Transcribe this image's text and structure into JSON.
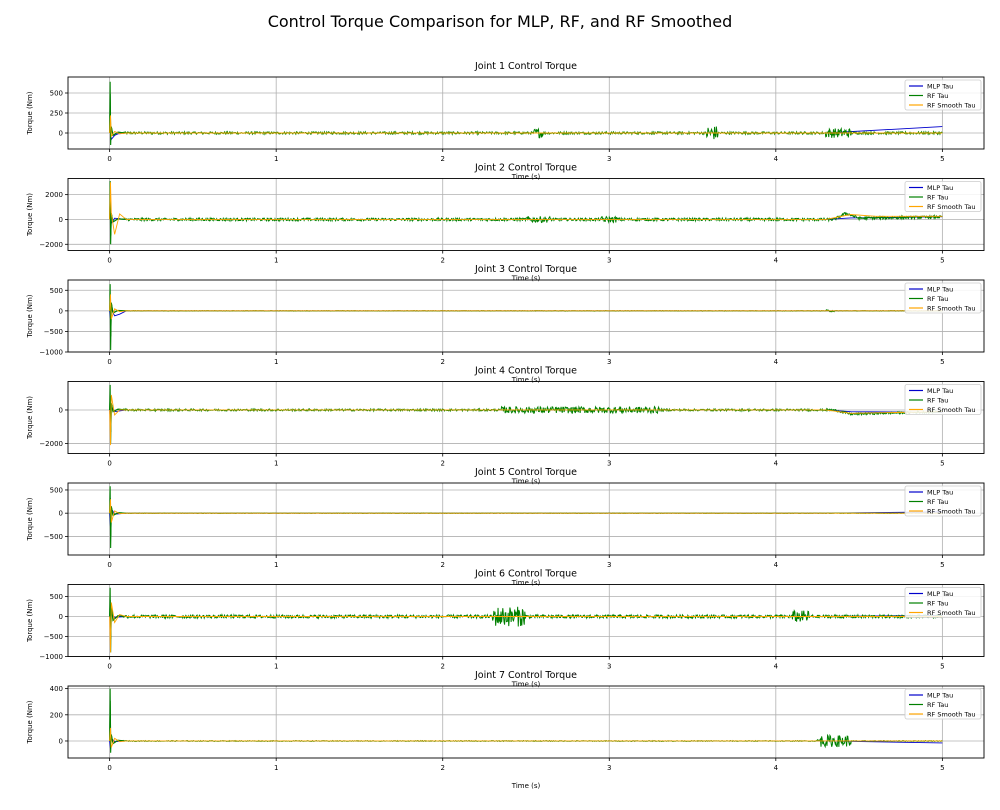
{
  "title": "Control Torque Comparison for MLP, RF, and RF Smoothed",
  "colors": {
    "mlp": "#0000cc",
    "rf": "#008000",
    "rf_smooth": "#ffa500",
    "grid": "#b0b0b0"
  },
  "chart_data": [
    {
      "type": "line",
      "title": "Joint 1 Control Torque",
      "xlabel": "Time (s)",
      "ylabel": "Torque (Nm)",
      "xlim": [
        -0.25,
        5.25
      ],
      "ylim": [
        -200,
        700
      ],
      "xticks": [
        0,
        1,
        2,
        3,
        4,
        5
      ],
      "yticks": [
        0,
        250,
        500
      ],
      "grid": true,
      "legend_position": "top-right",
      "legend": [
        "MLP Tau",
        "RF Tau",
        "RF Smooth Tau"
      ],
      "series": [
        {
          "name": "MLP Tau",
          "x": [
            0,
            0.005,
            0.01,
            0.03,
            0.05,
            0.1,
            4.3,
            5.0
          ],
          "y": [
            0,
            50,
            -80,
            -30,
            -10,
            0,
            0,
            80
          ]
        },
        {
          "name": "RF Tau",
          "x": [
            0,
            0.003,
            0.006,
            0.01,
            0.02,
            0.05,
            0.1,
            5.0
          ],
          "y": [
            0,
            640,
            -150,
            80,
            -30,
            10,
            0,
            0
          ],
          "noise": 15,
          "bursts": [
            [
              2.55,
              2.6,
              60
            ],
            [
              3.58,
              3.65,
              90
            ],
            [
              4.3,
              4.45,
              60
            ]
          ]
        },
        {
          "name": "RF Smooth Tau",
          "x": [
            0,
            0.005,
            0.01,
            0.03,
            0.06,
            0.1,
            5.0
          ],
          "y": [
            0,
            220,
            -40,
            20,
            -10,
            0,
            0
          ]
        }
      ]
    },
    {
      "type": "line",
      "title": "Joint 2 Control Torque",
      "xlabel": "Time (s)",
      "ylabel": "Torque (Nm)",
      "xlim": [
        -0.25,
        5.25
      ],
      "ylim": [
        -2500,
        3300
      ],
      "xticks": [
        0,
        1,
        2,
        3,
        4,
        5
      ],
      "yticks": [
        -2000,
        0,
        2000
      ],
      "grid": true,
      "legend_position": "top-right",
      "legend": [
        "MLP Tau",
        "RF Tau",
        "RF Smooth Tau"
      ],
      "series": [
        {
          "name": "MLP Tau",
          "x": [
            0,
            0.005,
            0.01,
            0.03,
            0.1,
            4.3,
            4.45,
            5.0
          ],
          "y": [
            0,
            1300,
            -300,
            100,
            0,
            0,
            120,
            220
          ]
        },
        {
          "name": "RF Tau",
          "x": [
            0,
            0.003,
            0.006,
            0.01,
            0.02,
            0.05,
            0.1,
            4.35,
            4.42,
            4.5,
            5.0
          ],
          "y": [
            0,
            3100,
            -2000,
            500,
            -200,
            50,
            0,
            0,
            500,
            100,
            200
          ],
          "noise": 110,
          "bursts": [
            [
              2.5,
              2.65,
              250
            ],
            [
              2.95,
              3.05,
              250
            ]
          ]
        },
        {
          "name": "RF Smooth Tau",
          "x": [
            0,
            0.005,
            0.01,
            0.03,
            0.06,
            0.1,
            4.3,
            4.45,
            4.6,
            5.0
          ],
          "y": [
            0,
            3000,
            500,
            -1200,
            450,
            0,
            0,
            400,
            250,
            250
          ]
        }
      ]
    },
    {
      "type": "line",
      "title": "Joint 3 Control Torque",
      "xlabel": "Time (s)",
      "ylabel": "Torque (Nm)",
      "xlim": [
        -0.25,
        5.25
      ],
      "ylim": [
        -1000,
        750
      ],
      "xticks": [
        0,
        1,
        2,
        3,
        4,
        5
      ],
      "yticks": [
        -1000,
        -500,
        0,
        500
      ],
      "grid": true,
      "legend_position": "top-right",
      "legend": [
        "MLP Tau",
        "RF Tau",
        "RF Smooth Tau"
      ],
      "series": [
        {
          "name": "MLP Tau",
          "x": [
            0,
            0.005,
            0.01,
            0.03,
            0.06,
            0.1,
            5.0
          ],
          "y": [
            0,
            -200,
            50,
            -120,
            -80,
            0,
            0
          ]
        },
        {
          "name": "RF Tau",
          "x": [
            0,
            0.003,
            0.006,
            0.01,
            0.02,
            0.05,
            0.1,
            5.0
          ],
          "y": [
            0,
            650,
            -950,
            200,
            -50,
            10,
            0,
            0
          ],
          "noise": 6,
          "bursts": [
            [
              4.3,
              4.35,
              25
            ]
          ]
        },
        {
          "name": "RF Smooth Tau",
          "x": [
            0,
            0.005,
            0.01,
            0.03,
            0.06,
            0.1,
            5.0
          ],
          "y": [
            0,
            400,
            -200,
            50,
            -20,
            0,
            0
          ]
        }
      ]
    },
    {
      "type": "line",
      "title": "Joint 4 Control Torque",
      "xlabel": "Time (s)",
      "ylabel": "Torque (Nm)",
      "xlim": [
        -0.25,
        5.25
      ],
      "ylim": [
        -2600,
        1700
      ],
      "xticks": [
        0,
        1,
        2,
        3,
        4,
        5
      ],
      "yticks": [
        -2000,
        0
      ],
      "grid": true,
      "legend_position": "top-right",
      "legend": [
        "MLP Tau",
        "RF Tau",
        "RF Smooth Tau"
      ],
      "series": [
        {
          "name": "MLP Tau",
          "x": [
            0,
            0.005,
            0.01,
            0.03,
            0.1,
            4.3,
            4.45,
            5.0
          ],
          "y": [
            0,
            -800,
            200,
            -100,
            0,
            0,
            -100,
            -150
          ]
        },
        {
          "name": "RF Tau",
          "x": [
            0,
            0.003,
            0.006,
            0.01,
            0.02,
            0.05,
            0.1,
            4.35,
            4.45,
            5.0
          ],
          "y": [
            0,
            1500,
            -2000,
            400,
            -100,
            50,
            0,
            0,
            -250,
            -100
          ],
          "noise": 60,
          "bursts": [
            [
              2.35,
              3.3,
              200
            ]
          ]
        },
        {
          "name": "RF Smooth Tau",
          "x": [
            0,
            0.005,
            0.01,
            0.03,
            0.06,
            0.1,
            4.3,
            4.45,
            5.0
          ],
          "y": [
            0,
            -2100,
            900,
            -300,
            0,
            0,
            0,
            -200,
            -100
          ]
        }
      ]
    },
    {
      "type": "line",
      "title": "Joint 5 Control Torque",
      "xlabel": "Time (s)",
      "ylabel": "Torque (Nm)",
      "xlim": [
        -0.25,
        5.25
      ],
      "ylim": [
        -900,
        650
      ],
      "xticks": [
        0,
        1,
        2,
        3,
        4,
        5
      ],
      "yticks": [
        -500,
        0,
        500
      ],
      "grid": true,
      "legend_position": "top-right",
      "legend": [
        "MLP Tau",
        "RF Tau",
        "RF Smooth Tau"
      ],
      "series": [
        {
          "name": "MLP Tau",
          "x": [
            0,
            0.005,
            0.01,
            0.03,
            0.1,
            4.3,
            5.0
          ],
          "y": [
            0,
            -300,
            100,
            -20,
            0,
            0,
            30
          ]
        },
        {
          "name": "RF Tau",
          "x": [
            0,
            0.003,
            0.006,
            0.01,
            0.02,
            0.05,
            0.1,
            5.0
          ],
          "y": [
            0,
            580,
            -750,
            150,
            -50,
            10,
            0,
            0
          ],
          "noise": 5
        },
        {
          "name": "RF Smooth Tau",
          "x": [
            0,
            0.005,
            0.01,
            0.03,
            0.06,
            0.1,
            5.0
          ],
          "y": [
            0,
            300,
            -200,
            50,
            -10,
            0,
            0
          ]
        }
      ]
    },
    {
      "type": "line",
      "title": "Joint 6 Control Torque",
      "xlabel": "Time (s)",
      "ylabel": "Torque (Nm)",
      "xlim": [
        -0.25,
        5.25
      ],
      "ylim": [
        -1000,
        800
      ],
      "xticks": [
        0,
        1,
        2,
        3,
        4,
        5
      ],
      "yticks": [
        -1000,
        -500,
        0,
        500
      ],
      "grid": true,
      "legend_position": "top-right",
      "legend": [
        "MLP Tau",
        "RF Tau",
        "RF Smooth Tau"
      ],
      "series": [
        {
          "name": "MLP Tau",
          "x": [
            0,
            0.005,
            0.01,
            0.03,
            0.1,
            4.3,
            5.0
          ],
          "y": [
            0,
            -100,
            50,
            -20,
            0,
            0,
            30
          ]
        },
        {
          "name": "RF Tau",
          "x": [
            0,
            0.003,
            0.006,
            0.01,
            0.02,
            0.05,
            0.1,
            5.0
          ],
          "y": [
            0,
            720,
            -900,
            300,
            -100,
            20,
            0,
            0
          ],
          "noise": 40,
          "bursts": [
            [
              2.3,
              2.5,
              250
            ],
            [
              4.1,
              4.2,
              150
            ]
          ]
        },
        {
          "name": "RF Smooth Tau",
          "x": [
            0,
            0.005,
            0.01,
            0.03,
            0.06,
            0.1,
            5.0
          ],
          "y": [
            0,
            -900,
            350,
            -150,
            50,
            0,
            0
          ]
        }
      ]
    },
    {
      "type": "line",
      "title": "Joint 7 Control Torque",
      "xlabel": "Time (s)",
      "ylabel": "Torque (Nm)",
      "xlim": [
        -0.25,
        5.25
      ],
      "ylim": [
        -130,
        420
      ],
      "xticks": [
        0,
        1,
        2,
        3,
        4,
        5
      ],
      "yticks": [
        0,
        200,
        400
      ],
      "grid": true,
      "legend_position": "top-right",
      "legend": [
        "MLP Tau",
        "RF Tau",
        "RF Smooth Tau"
      ],
      "series": [
        {
          "name": "MLP Tau",
          "x": [
            0,
            0.005,
            0.01,
            0.03,
            0.1,
            4.3,
            5.0
          ],
          "y": [
            0,
            -60,
            20,
            -5,
            0,
            0,
            -15
          ]
        },
        {
          "name": "RF Tau",
          "x": [
            0,
            0.003,
            0.006,
            0.01,
            0.02,
            0.05,
            0.1,
            5.0
          ],
          "y": [
            0,
            400,
            -90,
            50,
            -20,
            5,
            0,
            0
          ],
          "noise": 3,
          "bursts": [
            [
              4.25,
              4.45,
              45
            ]
          ]
        },
        {
          "name": "RF Smooth Tau",
          "x": [
            0,
            0.005,
            0.01,
            0.03,
            0.06,
            0.1,
            5.0
          ],
          "y": [
            0,
            100,
            -50,
            20,
            -5,
            0,
            0
          ]
        }
      ]
    }
  ]
}
